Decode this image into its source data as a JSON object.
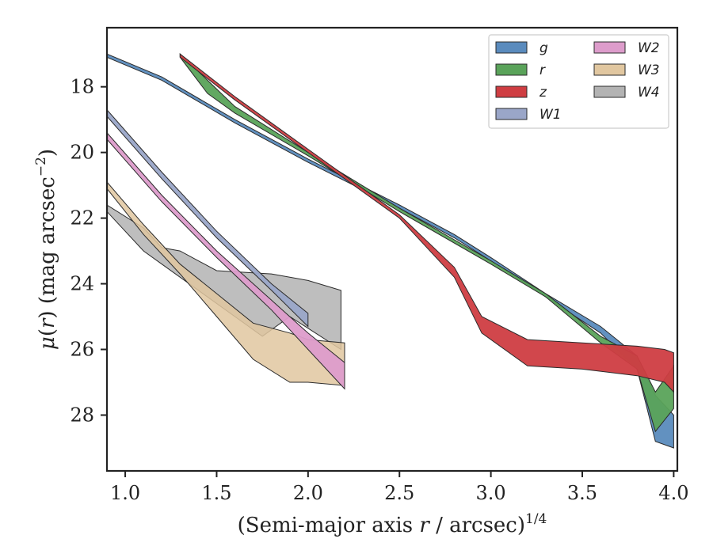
{
  "chart_data": {
    "type": "area",
    "xlabel": "(Semi-major axis r / arcsec)^{1/4}",
    "ylabel": "μ(r) (mag arcsec^{−2})",
    "xlim": [
      0.9,
      4.02
    ],
    "ylim": [
      29.7,
      16.2
    ],
    "y_inverted": true,
    "xticks": [
      1.0,
      1.5,
      2.0,
      2.5,
      3.0,
      3.5,
      4.0
    ],
    "xtick_labels": [
      "1.0",
      "1.5",
      "2.0",
      "2.5",
      "3.0",
      "3.5",
      "4.0"
    ],
    "yticks": [
      18,
      20,
      22,
      24,
      26,
      28
    ],
    "ytick_labels": [
      "18",
      "20",
      "22",
      "24",
      "26",
      "28"
    ],
    "grid": false,
    "legend_position": "top-right",
    "legend_columns": 2,
    "series": [
      {
        "name": "g",
        "color": "#5a8bbd",
        "upper": [
          [
            0.9,
            17.0
          ],
          [
            1.2,
            17.7
          ],
          [
            1.6,
            19.0
          ],
          [
            2.0,
            20.2
          ],
          [
            2.5,
            21.6
          ],
          [
            2.8,
            22.5
          ],
          [
            3.0,
            23.2
          ],
          [
            3.3,
            24.3
          ],
          [
            3.6,
            25.3
          ],
          [
            3.8,
            26.2
          ],
          [
            3.9,
            27.4
          ],
          [
            4.0,
            28.0
          ]
        ],
        "lower": [
          [
            0.9,
            17.1
          ],
          [
            1.2,
            17.8
          ],
          [
            1.6,
            19.1
          ],
          [
            2.0,
            20.3
          ],
          [
            2.5,
            21.7
          ],
          [
            2.8,
            22.6
          ],
          [
            3.0,
            23.3
          ],
          [
            3.3,
            24.4
          ],
          [
            3.6,
            25.5
          ],
          [
            3.8,
            26.6
          ],
          [
            3.9,
            28.8
          ],
          [
            4.0,
            29.0
          ]
        ]
      },
      {
        "name": "r",
        "color": "#5aa35a",
        "upper": [
          [
            1.3,
            17.0
          ],
          [
            1.45,
            17.8
          ],
          [
            1.6,
            18.6
          ],
          [
            2.0,
            20.0
          ],
          [
            2.5,
            21.7
          ],
          [
            3.0,
            23.3
          ],
          [
            3.3,
            24.3
          ],
          [
            3.6,
            25.6
          ],
          [
            3.8,
            26.2
          ],
          [
            3.9,
            27.3
          ],
          [
            4.0,
            26.5
          ]
        ],
        "lower": [
          [
            1.3,
            17.1
          ],
          [
            1.45,
            18.2
          ],
          [
            1.6,
            18.8
          ],
          [
            2.0,
            20.1
          ],
          [
            2.5,
            21.8
          ],
          [
            3.0,
            23.4
          ],
          [
            3.3,
            24.4
          ],
          [
            3.6,
            25.8
          ],
          [
            3.8,
            26.6
          ],
          [
            3.9,
            28.5
          ],
          [
            4.0,
            27.8
          ]
        ]
      },
      {
        "name": "z",
        "color": "#cf3d42",
        "upper": [
          [
            1.3,
            17.0
          ],
          [
            1.6,
            18.3
          ],
          [
            2.0,
            19.9
          ],
          [
            2.5,
            21.9
          ],
          [
            2.8,
            23.5
          ],
          [
            2.95,
            25.0
          ],
          [
            3.2,
            25.7
          ],
          [
            3.5,
            25.8
          ],
          [
            3.8,
            25.9
          ],
          [
            3.95,
            26.0
          ],
          [
            4.0,
            26.1
          ]
        ],
        "lower": [
          [
            1.3,
            17.1
          ],
          [
            1.6,
            18.4
          ],
          [
            2.0,
            20.0
          ],
          [
            2.5,
            22.0
          ],
          [
            2.8,
            23.8
          ],
          [
            2.95,
            25.5
          ],
          [
            3.2,
            26.5
          ],
          [
            3.5,
            26.6
          ],
          [
            3.8,
            26.8
          ],
          [
            3.95,
            27.0
          ],
          [
            4.0,
            27.3
          ]
        ]
      },
      {
        "name": "W1",
        "color": "#9aa6c8",
        "upper": [
          [
            0.9,
            18.7
          ],
          [
            1.2,
            20.6
          ],
          [
            1.5,
            22.4
          ],
          [
            1.8,
            24.0
          ],
          [
            2.0,
            24.9
          ]
        ],
        "lower": [
          [
            0.9,
            18.9
          ],
          [
            1.2,
            20.8
          ],
          [
            1.5,
            22.6
          ],
          [
            1.8,
            24.2
          ],
          [
            2.0,
            25.3
          ]
        ]
      },
      {
        "name": "W2",
        "color": "#dd9ccb",
        "upper": [
          [
            0.9,
            19.4
          ],
          [
            1.2,
            21.3
          ],
          [
            1.5,
            23.0
          ],
          [
            1.8,
            24.5
          ],
          [
            2.0,
            25.5
          ],
          [
            2.2,
            26.4
          ]
        ],
        "lower": [
          [
            0.9,
            19.6
          ],
          [
            1.2,
            21.5
          ],
          [
            1.5,
            23.2
          ],
          [
            1.8,
            24.8
          ],
          [
            2.0,
            26.0
          ],
          [
            2.2,
            27.2
          ]
        ]
      },
      {
        "name": "W3",
        "color": "#e1c7a0",
        "upper": [
          [
            0.9,
            20.9
          ],
          [
            1.1,
            22.2
          ],
          [
            1.3,
            23.4
          ],
          [
            1.5,
            24.3
          ],
          [
            1.7,
            25.2
          ],
          [
            1.9,
            25.5
          ],
          [
            2.0,
            25.7
          ],
          [
            2.2,
            25.8
          ]
        ],
        "lower": [
          [
            0.9,
            21.1
          ],
          [
            1.1,
            22.5
          ],
          [
            1.3,
            23.7
          ],
          [
            1.5,
            25.0
          ],
          [
            1.7,
            26.3
          ],
          [
            1.9,
            27.0
          ],
          [
            2.0,
            27.0
          ],
          [
            2.2,
            27.1
          ]
        ]
      },
      {
        "name": "W4",
        "color": "#b3b3b3",
        "upper": [
          [
            0.9,
            21.6
          ],
          [
            1.1,
            22.3
          ],
          [
            1.2,
            22.9
          ],
          [
            1.3,
            23.0
          ],
          [
            1.5,
            23.6
          ],
          [
            1.8,
            23.7
          ],
          [
            2.0,
            23.9
          ],
          [
            2.18,
            24.2
          ]
        ],
        "lower": [
          [
            0.9,
            21.8
          ],
          [
            1.1,
            23.0
          ],
          [
            1.2,
            23.4
          ],
          [
            1.4,
            24.2
          ],
          [
            1.6,
            25.0
          ],
          [
            1.75,
            25.6
          ],
          [
            1.9,
            25.0
          ],
          [
            2.18,
            26.0
          ]
        ]
      }
    ]
  }
}
